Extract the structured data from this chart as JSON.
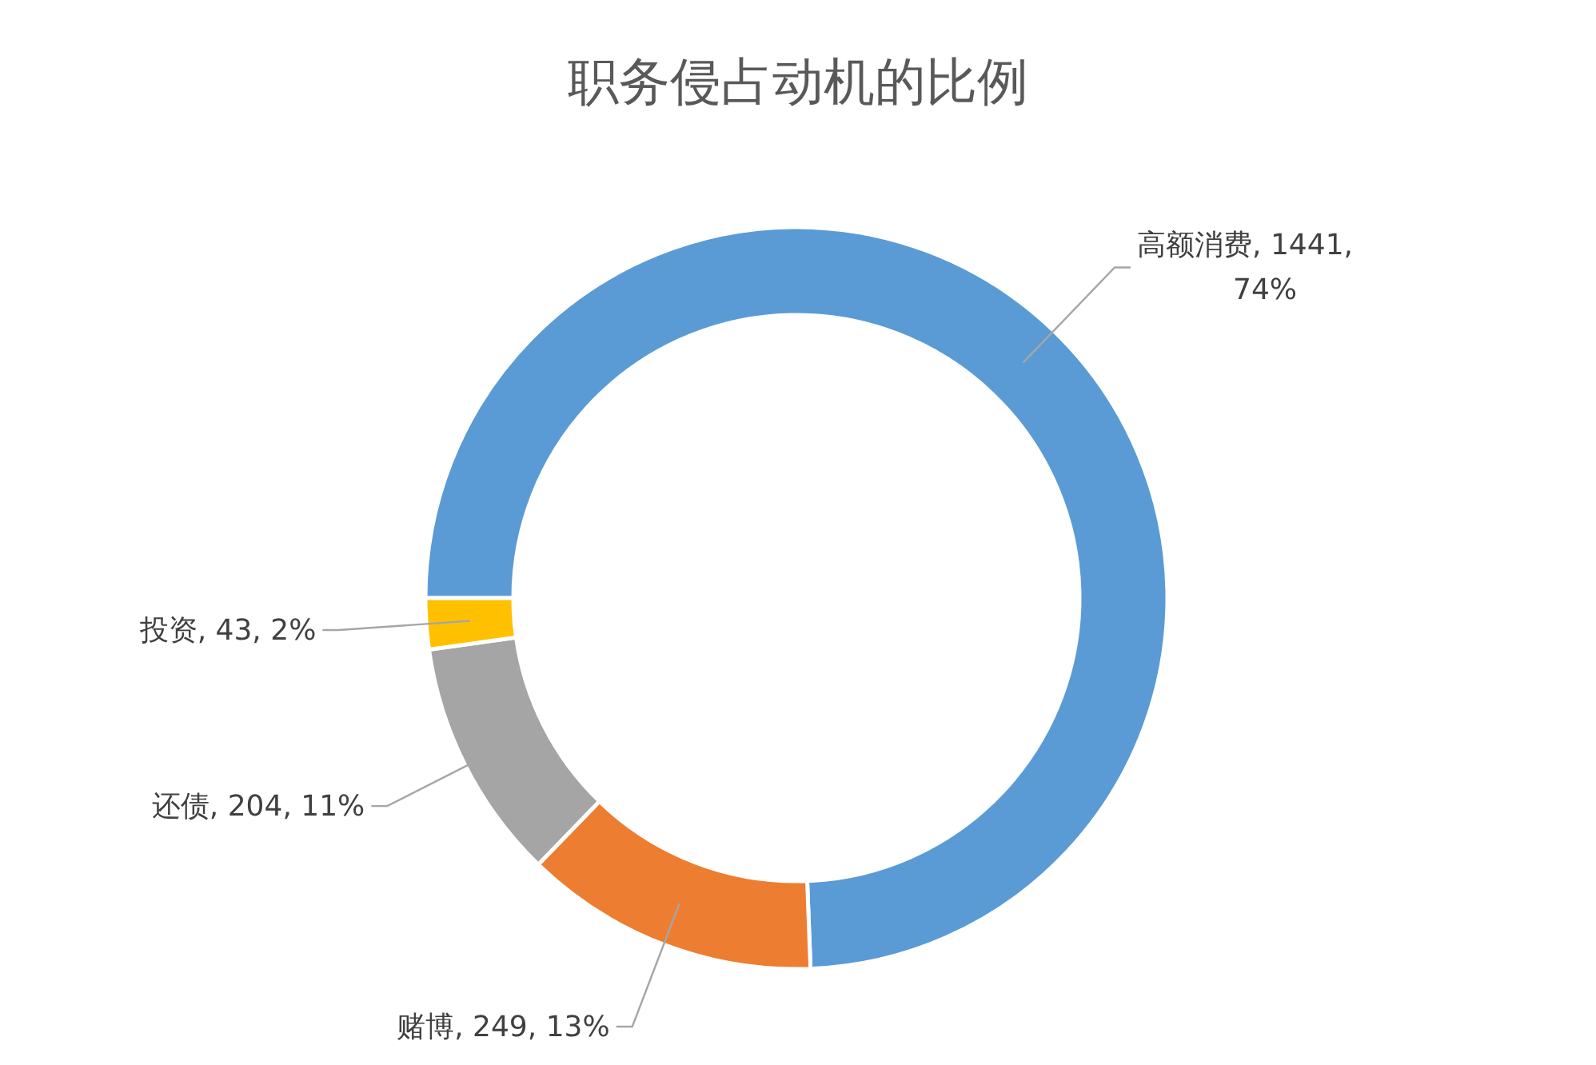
{
  "chart_data": {
    "type": "donut",
    "title": "职务侵占动机的比例",
    "categories": [
      "高额消费",
      "赌博",
      "还债",
      "投资"
    ],
    "values": [
      1441,
      249,
      204,
      43
    ],
    "value_labels": [
      "1441, 74%",
      "249, 13%",
      "204, 11%",
      "43, 2%"
    ],
    "colors": [
      "#5b9bd5",
      "#ed7d31",
      "#a5a5a5",
      "#ffc000"
    ]
  }
}
